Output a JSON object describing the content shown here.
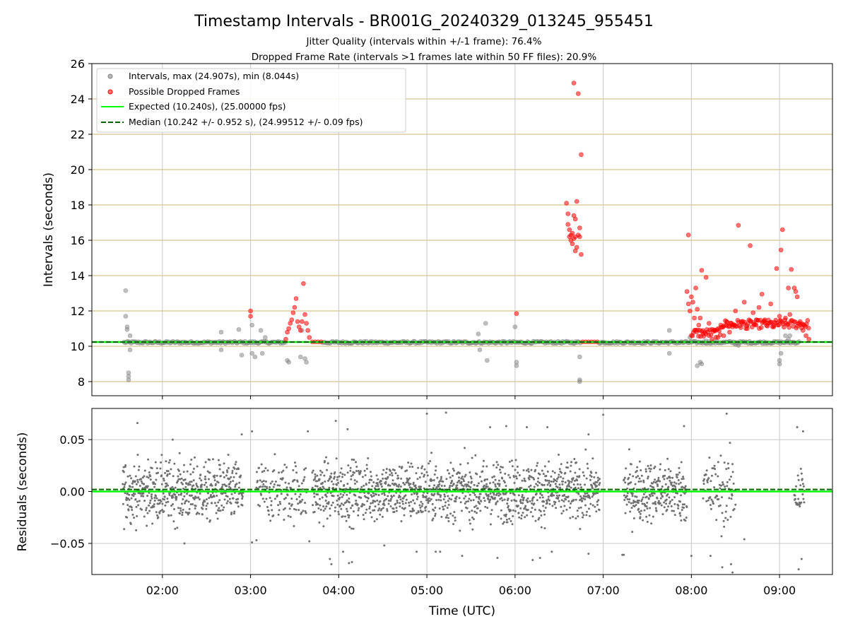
{
  "chart_data": {
    "type": "scatter",
    "title": "Timestamp Intervals - BR001G_20240329_013245_955451",
    "subtitles": [
      "Jitter Quality (intervals within +/-1 frame): 76.4%",
      "Dropped Frame Rate (intervals >1 frames late within 50 FF files): 20.9%"
    ],
    "xlabel": "Time (UTC)",
    "x_ticks": [
      "02:00",
      "03:00",
      "04:00",
      "05:00",
      "06:00",
      "07:00",
      "08:00",
      "09:00"
    ],
    "xlim": [
      "01:12",
      "09:36"
    ],
    "panels": [
      {
        "name": "intervals",
        "ylabel": "Intervals (seconds)",
        "ylim": [
          7.2,
          26
        ],
        "y_ticks": [
          8,
          10,
          12,
          14,
          16,
          18,
          20,
          22,
          24,
          26
        ],
        "grid": "horizontal lines tan, vertical lines gray",
        "legend_placement": "top-left",
        "legend": [
          "Intervals, max (24.907s), min (8.044s)",
          "Possible Dropped Frames",
          "Expected (10.240s), (25.00000 fps)",
          "Median (10.242 +/- 0.952 s), (24.99512 +/- 0.09 fps)"
        ],
        "lines": [
          {
            "name": "Expected",
            "y": 10.24,
            "color": "#00ff00",
            "style": "solid"
          },
          {
            "name": "Median",
            "y": 10.242,
            "color": "#006400",
            "style": "dashed"
          }
        ],
        "series": [
          {
            "name": "Intervals",
            "color": "#808080",
            "points": [
              [
                "01:35",
                13.15
              ],
              [
                "01:35",
                11.7
              ],
              [
                "01:36",
                11.1
              ],
              [
                "01:36",
                10.95
              ],
              [
                "01:37",
                8.5
              ],
              [
                "01:37",
                8.3
              ],
              [
                "01:37",
                8.1
              ],
              [
                "01:38",
                10.6
              ],
              [
                "01:38",
                9.8
              ],
              [
                "02:40",
                10.8
              ],
              [
                "02:40",
                9.8
              ],
              [
                "02:52",
                10.95
              ],
              [
                "02:54",
                9.5
              ],
              [
                "03:01",
                11.2
              ],
              [
                "03:01",
                9.6
              ],
              [
                "03:03",
                9.4
              ],
              [
                "03:07",
                10.9
              ],
              [
                "03:08",
                9.6
              ],
              [
                "03:10",
                10.5
              ],
              [
                "03:25",
                9.2
              ],
              [
                "03:26",
                9.1
              ],
              [
                "03:34",
                9.4
              ],
              [
                "03:35",
                10.9
              ],
              [
                "03:37",
                9.3
              ],
              [
                "03:38",
                9.1
              ],
              [
                "05:35",
                10.7
              ],
              [
                "05:36",
                9.8
              ],
              [
                "05:40",
                11.3
              ],
              [
                "05:41",
                9.2
              ],
              [
                "06:00",
                11.1
              ],
              [
                "06:01",
                9.1
              ],
              [
                "06:01",
                8.9
              ],
              [
                "06:44",
                9.4
              ],
              [
                "06:44",
                8.1
              ],
              [
                "06:44",
                8.0
              ],
              [
                "07:45",
                10.9
              ],
              [
                "07:45",
                9.6
              ],
              [
                "07:59",
                10.5
              ],
              [
                "08:04",
                8.9
              ],
              [
                "08:06",
                9.1
              ],
              [
                "08:07",
                9.0
              ],
              [
                "08:10",
                10.3
              ],
              [
                "08:30",
                10.1
              ],
              [
                "08:32",
                10.05
              ],
              [
                "09:00",
                9.2
              ],
              [
                "09:00",
                9.0
              ],
              [
                "09:01",
                9.6
              ],
              [
                "09:04",
                10.6
              ],
              [
                "09:06",
                10.4
              ],
              [
                "09:07",
                10.6
              ]
            ]
          },
          {
            "name": "Possible Dropped Frames",
            "color": "#ff0000",
            "points": [
              [
                "03:00",
                12.0
              ],
              [
                "03:00",
                11.7
              ],
              [
                "03:24",
                10.4
              ],
              [
                "03:25",
                10.8
              ],
              [
                "03:26",
                11.0
              ],
              [
                "03:27",
                11.3
              ],
              [
                "03:28",
                11.5
              ],
              [
                "03:29",
                11.9
              ],
              [
                "03:30",
                12.2
              ],
              [
                "03:31",
                12.7
              ],
              [
                "03:32",
                11.4
              ],
              [
                "03:33",
                11.1
              ],
              [
                "03:34",
                10.9
              ],
              [
                "03:35",
                11.4
              ],
              [
                "03:36",
                13.55
              ],
              [
                "03:37",
                11.8
              ],
              [
                "03:38",
                11.3
              ],
              [
                "03:39",
                10.9
              ],
              [
                "03:40",
                10.5
              ],
              [
                "03:42",
                10.25
              ],
              [
                "03:44",
                10.25
              ],
              [
                "03:46",
                10.25
              ],
              [
                "03:48",
                10.25
              ],
              [
                "06:01",
                11.85
              ],
              [
                "06:35",
                18.1
              ],
              [
                "06:36",
                17.5
              ],
              [
                "06:36",
                16.9
              ],
              [
                "06:37",
                16.6
              ],
              [
                "06:37",
                16.2
              ],
              [
                "06:38",
                16.0
              ],
              [
                "06:38",
                16.3
              ],
              [
                "06:39",
                15.8
              ],
              [
                "06:39",
                16.4
              ],
              [
                "06:40",
                24.9
              ],
              [
                "06:40",
                17.4
              ],
              [
                "06:40",
                16.1
              ],
              [
                "06:41",
                15.4
              ],
              [
                "06:41",
                16.2
              ],
              [
                "06:41",
                17.2
              ],
              [
                "06:42",
                18.2
              ],
              [
                "06:42",
                15.6
              ],
              [
                "06:43",
                16.3
              ],
              [
                "06:43",
                24.3
              ],
              [
                "06:44",
                16.7
              ],
              [
                "06:44",
                16.2
              ],
              [
                "06:45",
                15.2
              ],
              [
                "06:45",
                20.85
              ],
              [
                "06:46",
                10.25
              ],
              [
                "06:48",
                10.25
              ],
              [
                "06:50",
                10.25
              ],
              [
                "06:52",
                10.25
              ],
              [
                "06:54",
                10.25
              ],
              [
                "06:56",
                10.25
              ],
              [
                "07:57",
                13.1
              ],
              [
                "07:58",
                12.4
              ],
              [
                "07:58",
                16.3
              ],
              [
                "07:59",
                12.0
              ],
              [
                "08:00",
                12.8
              ],
              [
                "08:01",
                12.5
              ],
              [
                "08:02",
                11.6
              ],
              [
                "08:03",
                13.3
              ],
              [
                "08:04",
                12.1
              ],
              [
                "08:05",
                11.2
              ],
              [
                "08:06",
                11.6
              ],
              [
                "08:07",
                14.3
              ],
              [
                "08:08",
                10.7
              ],
              [
                "08:10",
                13.9
              ],
              [
                "08:12",
                11.3
              ],
              [
                "08:14",
                10.4
              ],
              [
                "08:16",
                10.9
              ],
              [
                "08:18",
                10.5
              ],
              [
                "08:20",
                11.2
              ],
              [
                "08:22",
                10.6
              ],
              [
                "08:24",
                11.4
              ],
              [
                "08:26",
                10.8
              ],
              [
                "08:28",
                11.1
              ],
              [
                "08:30",
                12.0
              ],
              [
                "08:32",
                16.85
              ],
              [
                "08:34",
                11.4
              ],
              [
                "08:36",
                12.5
              ],
              [
                "08:38",
                11.0
              ],
              [
                "08:40",
                15.7
              ],
              [
                "08:42",
                11.9
              ],
              [
                "08:44",
                11.2
              ],
              [
                "08:46",
                12.2
              ],
              [
                "08:48",
                12.95
              ],
              [
                "08:50",
                11.5
              ],
              [
                "08:52",
                11.3
              ],
              [
                "08:54",
                12.4
              ],
              [
                "08:56",
                11.1
              ],
              [
                "08:58",
                14.4
              ],
              [
                "09:00",
                11.7
              ],
              [
                "09:01",
                15.45
              ],
              [
                "09:02",
                16.6
              ],
              [
                "09:04",
                11.6
              ],
              [
                "09:06",
                13.3
              ],
              [
                "09:07",
                11.8
              ],
              [
                "09:08",
                14.35
              ],
              [
                "09:10",
                13.3
              ],
              [
                "09:11",
                13.1
              ],
              [
                "09:12",
                12.8
              ],
              [
                "09:14",
                11.4
              ],
              [
                "09:16",
                10.9
              ],
              [
                "09:18",
                10.6
              ],
              [
                "09:20",
                10.4
              ]
            ]
          }
        ]
      },
      {
        "name": "residuals",
        "ylabel": "Residuals (seconds)",
        "ylim": [
          -0.08,
          0.08
        ],
        "y_ticks": [
          "−0.05",
          "0.00",
          "0.05"
        ],
        "grid": "gray",
        "lines": [
          {
            "name": "Expected",
            "y": 0.0,
            "color": "#00ff00",
            "style": "solid"
          },
          {
            "name": "Median",
            "y": 0.002,
            "color": "#006400",
            "style": "dashed"
          }
        ],
        "series": [
          {
            "name": "Residuals",
            "color": "#707070",
            "segments": [
              {
                "start": "01:33",
                "end": "02:55",
                "spread": 0.05
              },
              {
                "start": "03:04",
                "end": "03:38",
                "spread": 0.05
              },
              {
                "start": "03:42",
                "end": "06:58",
                "spread": 0.05
              },
              {
                "start": "07:14",
                "end": "07:57",
                "spread": 0.05
              },
              {
                "start": "08:08",
                "end": "08:30",
                "spread": 0.06
              },
              {
                "start": "09:10",
                "end": "09:17",
                "spread": 0.05
              }
            ],
            "outliers": [
              [
                "01:43",
                0.066
              ],
              [
                "02:07",
                0.05
              ],
              [
                "02:15",
                -0.05
              ],
              [
                "02:54",
                0.055
              ],
              [
                "03:01",
                -0.049
              ],
              [
                "03:01",
                0.058
              ],
              [
                "03:04",
                -0.047
              ],
              [
                "03:39",
                0.058
              ],
              [
                "03:40",
                -0.048
              ],
              [
                "03:54",
                -0.065
              ],
              [
                "03:55",
                -0.07
              ],
              [
                "03:58",
                0.068
              ],
              [
                "04:03",
                -0.058
              ],
              [
                "04:06",
                0.06
              ],
              [
                "04:07",
                -0.069
              ],
              [
                "04:09",
                -0.068
              ],
              [
                "04:31",
                -0.052
              ],
              [
                "04:53",
                -0.058
              ],
              [
                "05:00",
                0.075
              ],
              [
                "05:06",
                -0.058
              ],
              [
                "05:09",
                -0.058
              ],
              [
                "05:13",
                0.076
              ],
              [
                "05:24",
                -0.062
              ],
              [
                "05:43",
                0.062
              ],
              [
                "05:48",
                -0.064
              ],
              [
                "05:54",
                0.063
              ],
              [
                "06:08",
                0.062
              ],
              [
                "06:12",
                -0.066
              ],
              [
                "06:17",
                -0.064
              ],
              [
                "06:22",
                0.062
              ],
              [
                "06:25",
                -0.058
              ],
              [
                "06:50",
                0.055
              ],
              [
                "06:50",
                -0.06
              ],
              [
                "07:00",
                0.074
              ],
              [
                "07:13",
                -0.061
              ],
              [
                "07:14",
                -0.061
              ],
              [
                "07:55",
                0.063
              ],
              [
                "08:00",
                -0.062
              ],
              [
                "08:13",
                -0.062
              ],
              [
                "08:21",
                -0.073
              ],
              [
                "08:24",
                0.075
              ],
              [
                "08:27",
                -0.07
              ],
              [
                "08:28",
                -0.078
              ],
              [
                "08:36",
                -0.046
              ],
              [
                "09:12",
                0.062
              ],
              [
                "09:13",
                -0.075
              ],
              [
                "09:15",
                -0.065
              ],
              [
                "09:16",
                0.058
              ]
            ]
          }
        ]
      }
    ]
  }
}
